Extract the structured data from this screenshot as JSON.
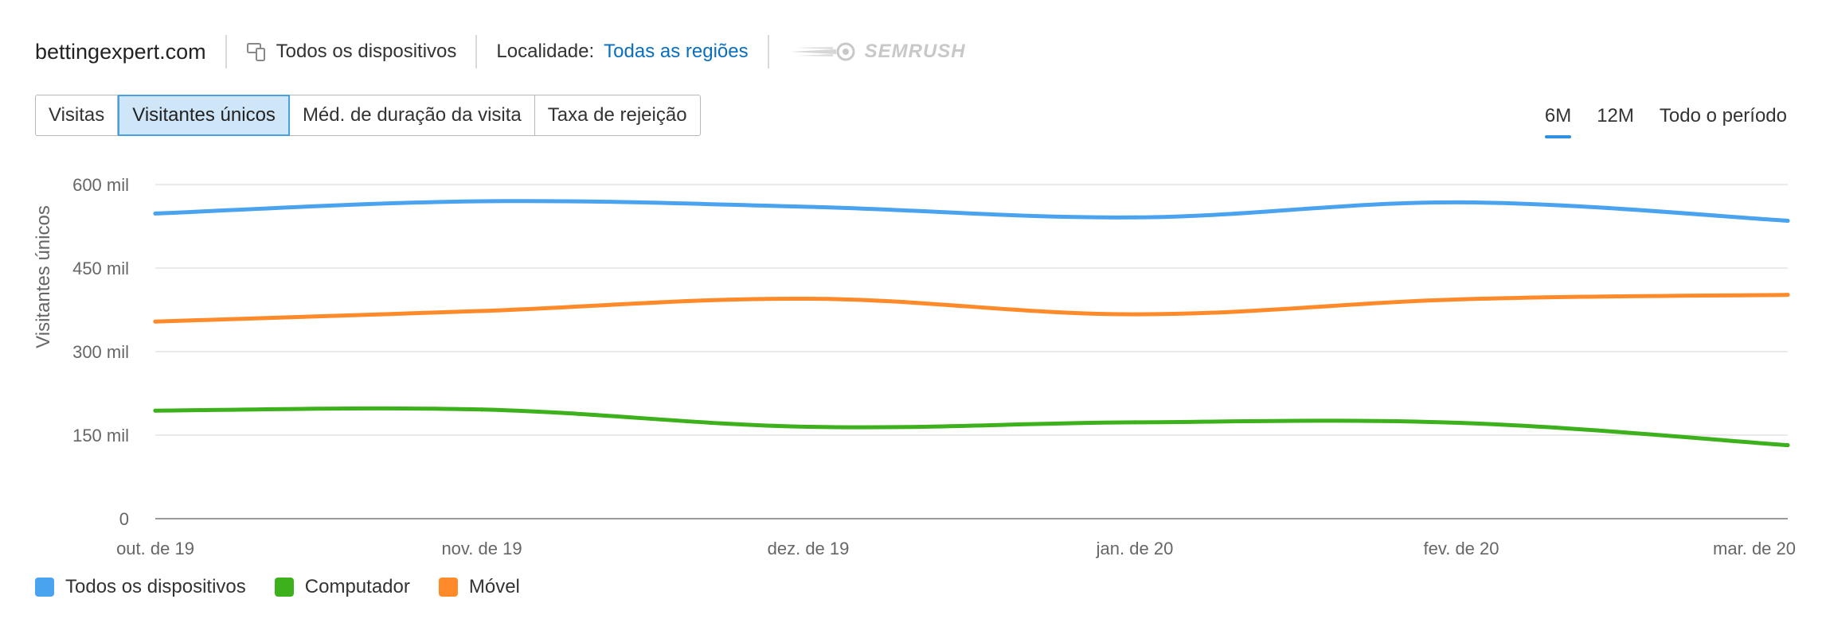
{
  "header": {
    "site": "bettingexpert.com",
    "devices_label": "Todos os dispositivos",
    "locality_label": "Localidade:",
    "locality_value": "Todas as regiões",
    "brand": "SEMRUSH"
  },
  "tabs": [
    {
      "label": "Visitas",
      "active": false
    },
    {
      "label": "Visitantes únicos",
      "active": true
    },
    {
      "label": "Méd. de duração da visita",
      "active": false
    },
    {
      "label": "Taxa de rejeição",
      "active": false
    }
  ],
  "range": [
    {
      "label": "6M",
      "active": true
    },
    {
      "label": "12M",
      "active": false
    },
    {
      "label": "Todo o período",
      "active": false
    }
  ],
  "colors": {
    "all_devices": "#4aa3ee",
    "desktop": "#3cb11c",
    "mobile": "#ff8a2a",
    "active_tab_bg": "#cfe6f8",
    "link": "#0a6ebd"
  },
  "chart_data": {
    "type": "line",
    "ylabel": "Visitantes únicos",
    "ylim": [
      0,
      600
    ],
    "yticks": [
      0,
      150,
      300,
      450,
      600
    ],
    "ytick_labels": [
      "0",
      "150 mil",
      "300 mil",
      "450 mil",
      "600 mil"
    ],
    "categories": [
      "out. de 19",
      "nov. de 19",
      "dez. de 19",
      "jan. de 20",
      "fev. de 20",
      "mar. de 20"
    ],
    "grid": true,
    "legend_position": "bottom-left",
    "series": [
      {
        "name": "Todos os dispositivos",
        "color": "#4aa3ee",
        "values": [
          548,
          570,
          560,
          541,
          568,
          535
        ]
      },
      {
        "name": "Computador",
        "color": "#3cb11c",
        "values": [
          194,
          196,
          165,
          173,
          172,
          132
        ]
      },
      {
        "name": "Móvel",
        "color": "#ff8a2a",
        "values": [
          354,
          373,
          395,
          367,
          394,
          402
        ]
      }
    ]
  }
}
